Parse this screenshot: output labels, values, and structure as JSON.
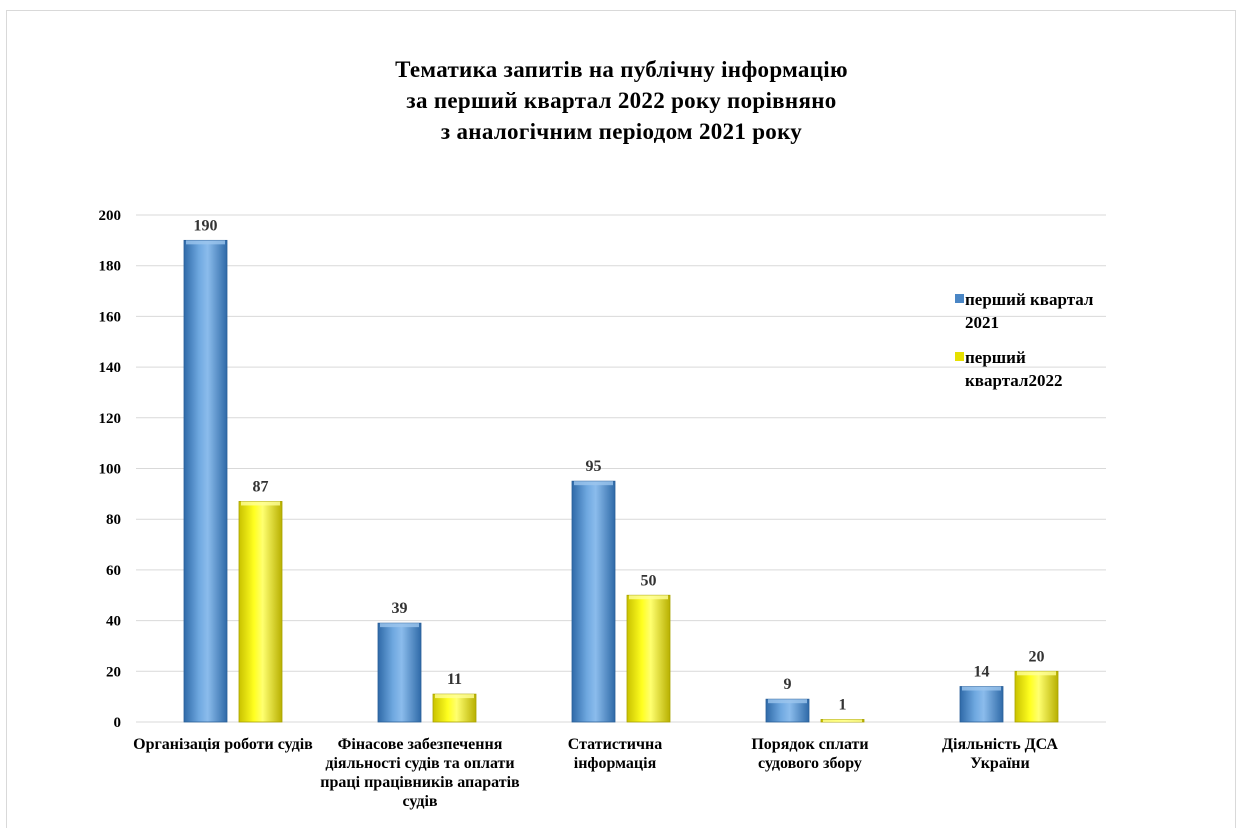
{
  "chart_data": {
    "type": "bar",
    "title_lines": [
      "Тематика запитів на публічну інформацію",
      "за перший квартал 2022 року порівняно",
      "з аналогічним періодом 2021 року"
    ],
    "categories": [
      "Організація роботи судів",
      "Фінасове забезпечення діяльності судів та оплати праці працівників апаратів судів",
      "Статистична інформація",
      "Порядок сплати судового збору",
      "Діяльність ДСА України"
    ],
    "series": [
      {
        "name": "перший квартал 2021",
        "values": [
          190,
          39,
          95,
          9,
          14
        ],
        "color": "#5b9bd5"
      },
      {
        "name": "перший квартал2022",
        "values": [
          87,
          11,
          50,
          1,
          20
        ],
        "color": "#ffff00"
      }
    ],
    "ylim": [
      0,
      200
    ],
    "yticks": [
      0,
      20,
      40,
      60,
      80,
      100,
      120,
      140,
      160,
      180,
      200
    ],
    "grid": true,
    "legend_position": "right"
  }
}
